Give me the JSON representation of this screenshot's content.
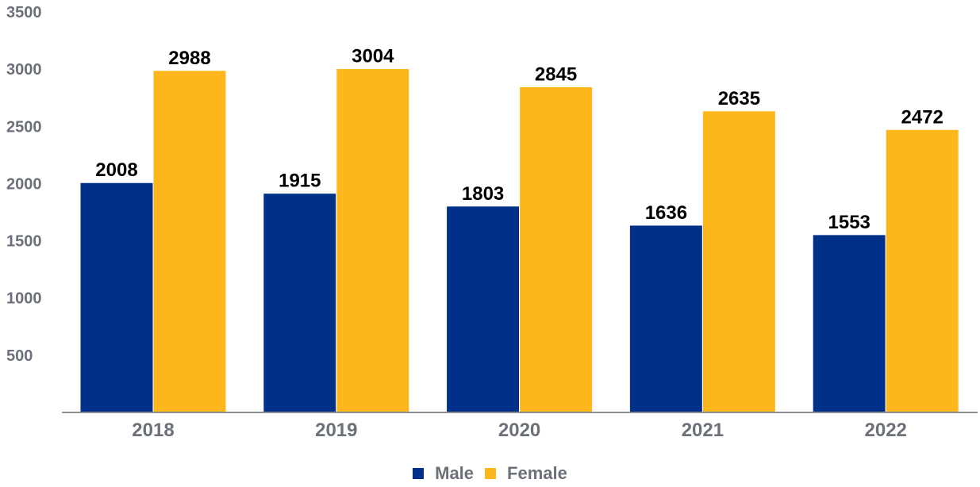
{
  "chart_data": {
    "type": "bar",
    "categories": [
      "2018",
      "2019",
      "2020",
      "2021",
      "2022"
    ],
    "series": [
      {
        "name": "Male",
        "color": "#013088",
        "values": [
          2008,
          1915,
          1803,
          1636,
          1553
        ]
      },
      {
        "name": "Female",
        "color": "#fdb71c",
        "values": [
          2988,
          3004,
          2845,
          2635,
          2472
        ]
      }
    ],
    "yticks": [
      "500",
      "1000",
      "1500",
      "2000",
      "2500",
      "3000",
      "3500"
    ],
    "ylim": [
      0,
      3500
    ],
    "grid": false,
    "legend_position": "bottom-center"
  }
}
